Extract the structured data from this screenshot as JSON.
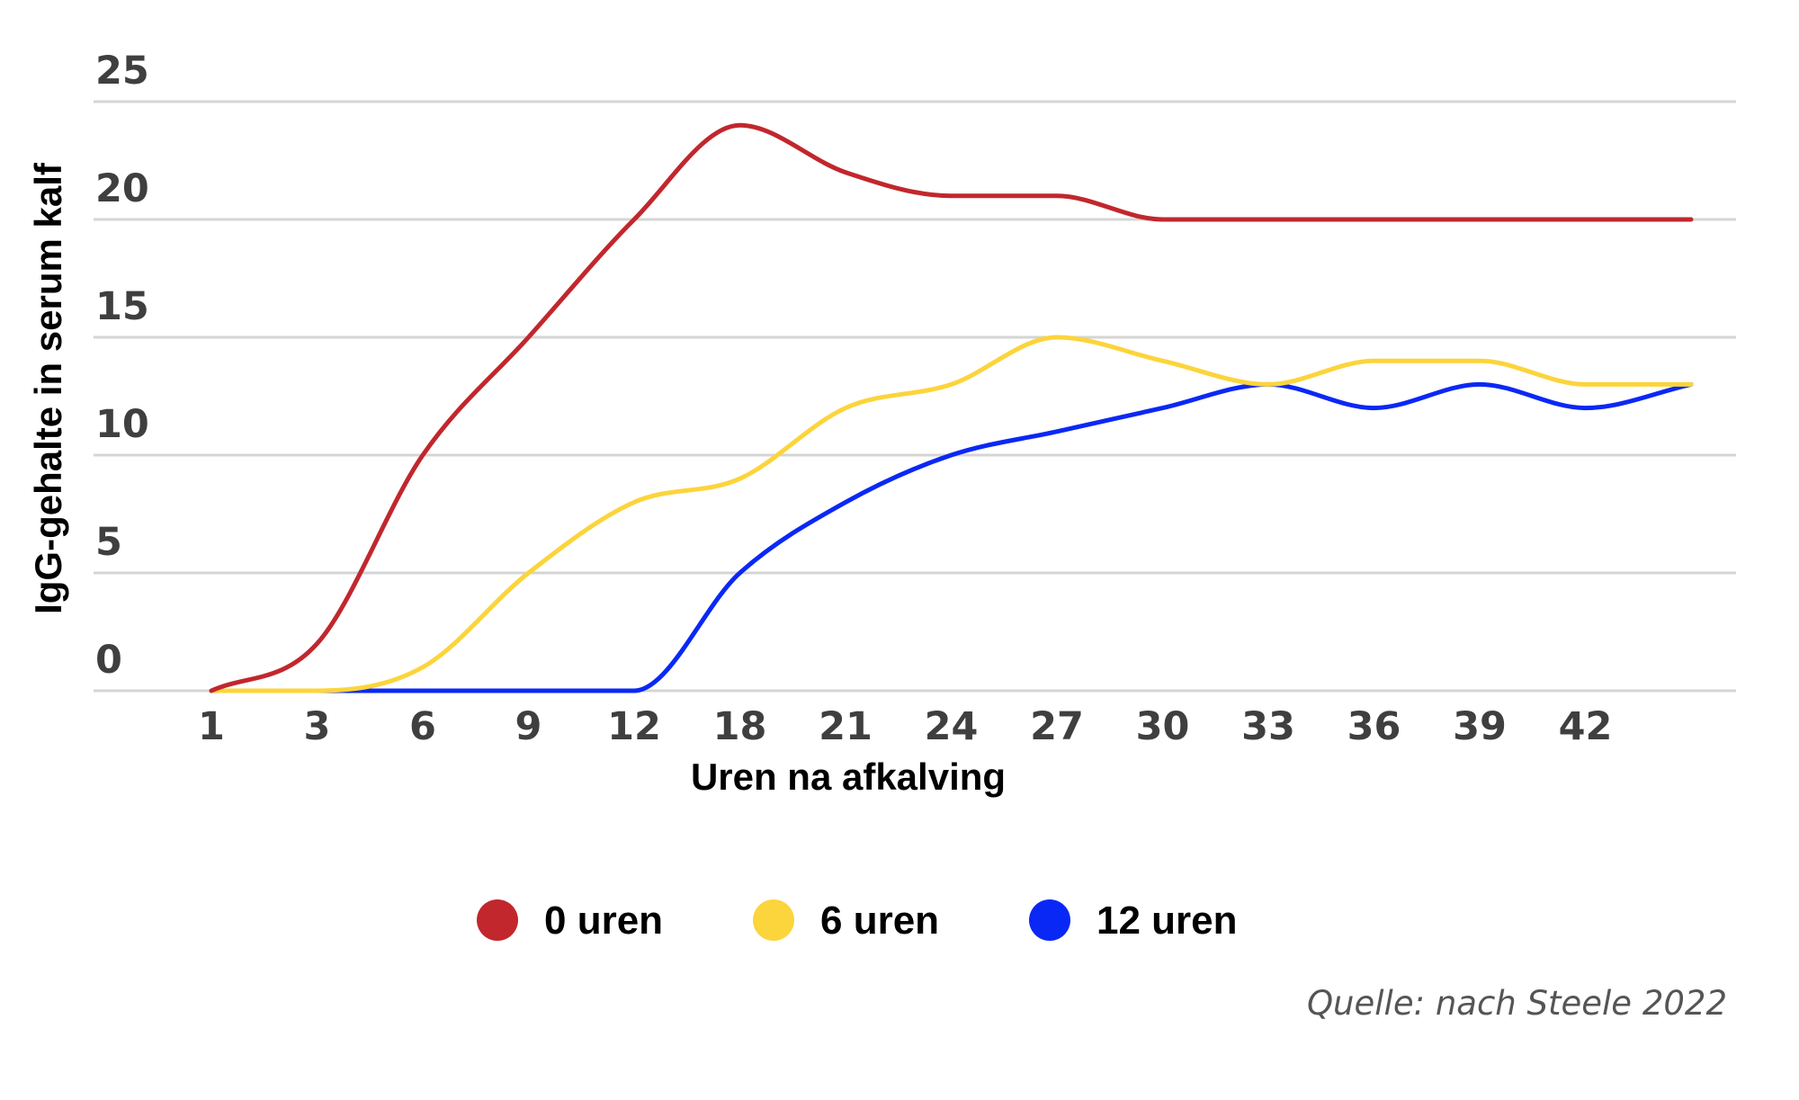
{
  "chart_data": {
    "type": "line",
    "title": "",
    "xlabel": "Uren na afkalving",
    "ylabel": "IgG-gehalte in serum kalf",
    "categories": [
      "1",
      "3",
      "6",
      "9",
      "12",
      "18",
      "21",
      "24",
      "27",
      "30",
      "33",
      "36",
      "39",
      "42",
      ""
    ],
    "yticks": [
      0,
      5,
      10,
      15,
      20,
      25
    ],
    "ylim": [
      0,
      25
    ],
    "grid": true,
    "legend_position": "bottom",
    "series": [
      {
        "name": "0 uren",
        "color": "#c1272d",
        "values": [
          0,
          2,
          10,
          15,
          20,
          24,
          22,
          21,
          21,
          20,
          20,
          20,
          20,
          20,
          20
        ]
      },
      {
        "name": "6 uren",
        "color": "#fcd43b",
        "values": [
          0,
          0,
          1,
          5,
          8,
          9,
          12,
          13,
          15,
          14,
          13,
          14,
          14,
          13,
          13
        ]
      },
      {
        "name": "12 uren",
        "color": "#0a28f5",
        "values": [
          0,
          0,
          0,
          0,
          0,
          5,
          8,
          10,
          11,
          12,
          13,
          12,
          13,
          12,
          13
        ]
      }
    ]
  },
  "source": "Quelle: nach Steele 2022"
}
